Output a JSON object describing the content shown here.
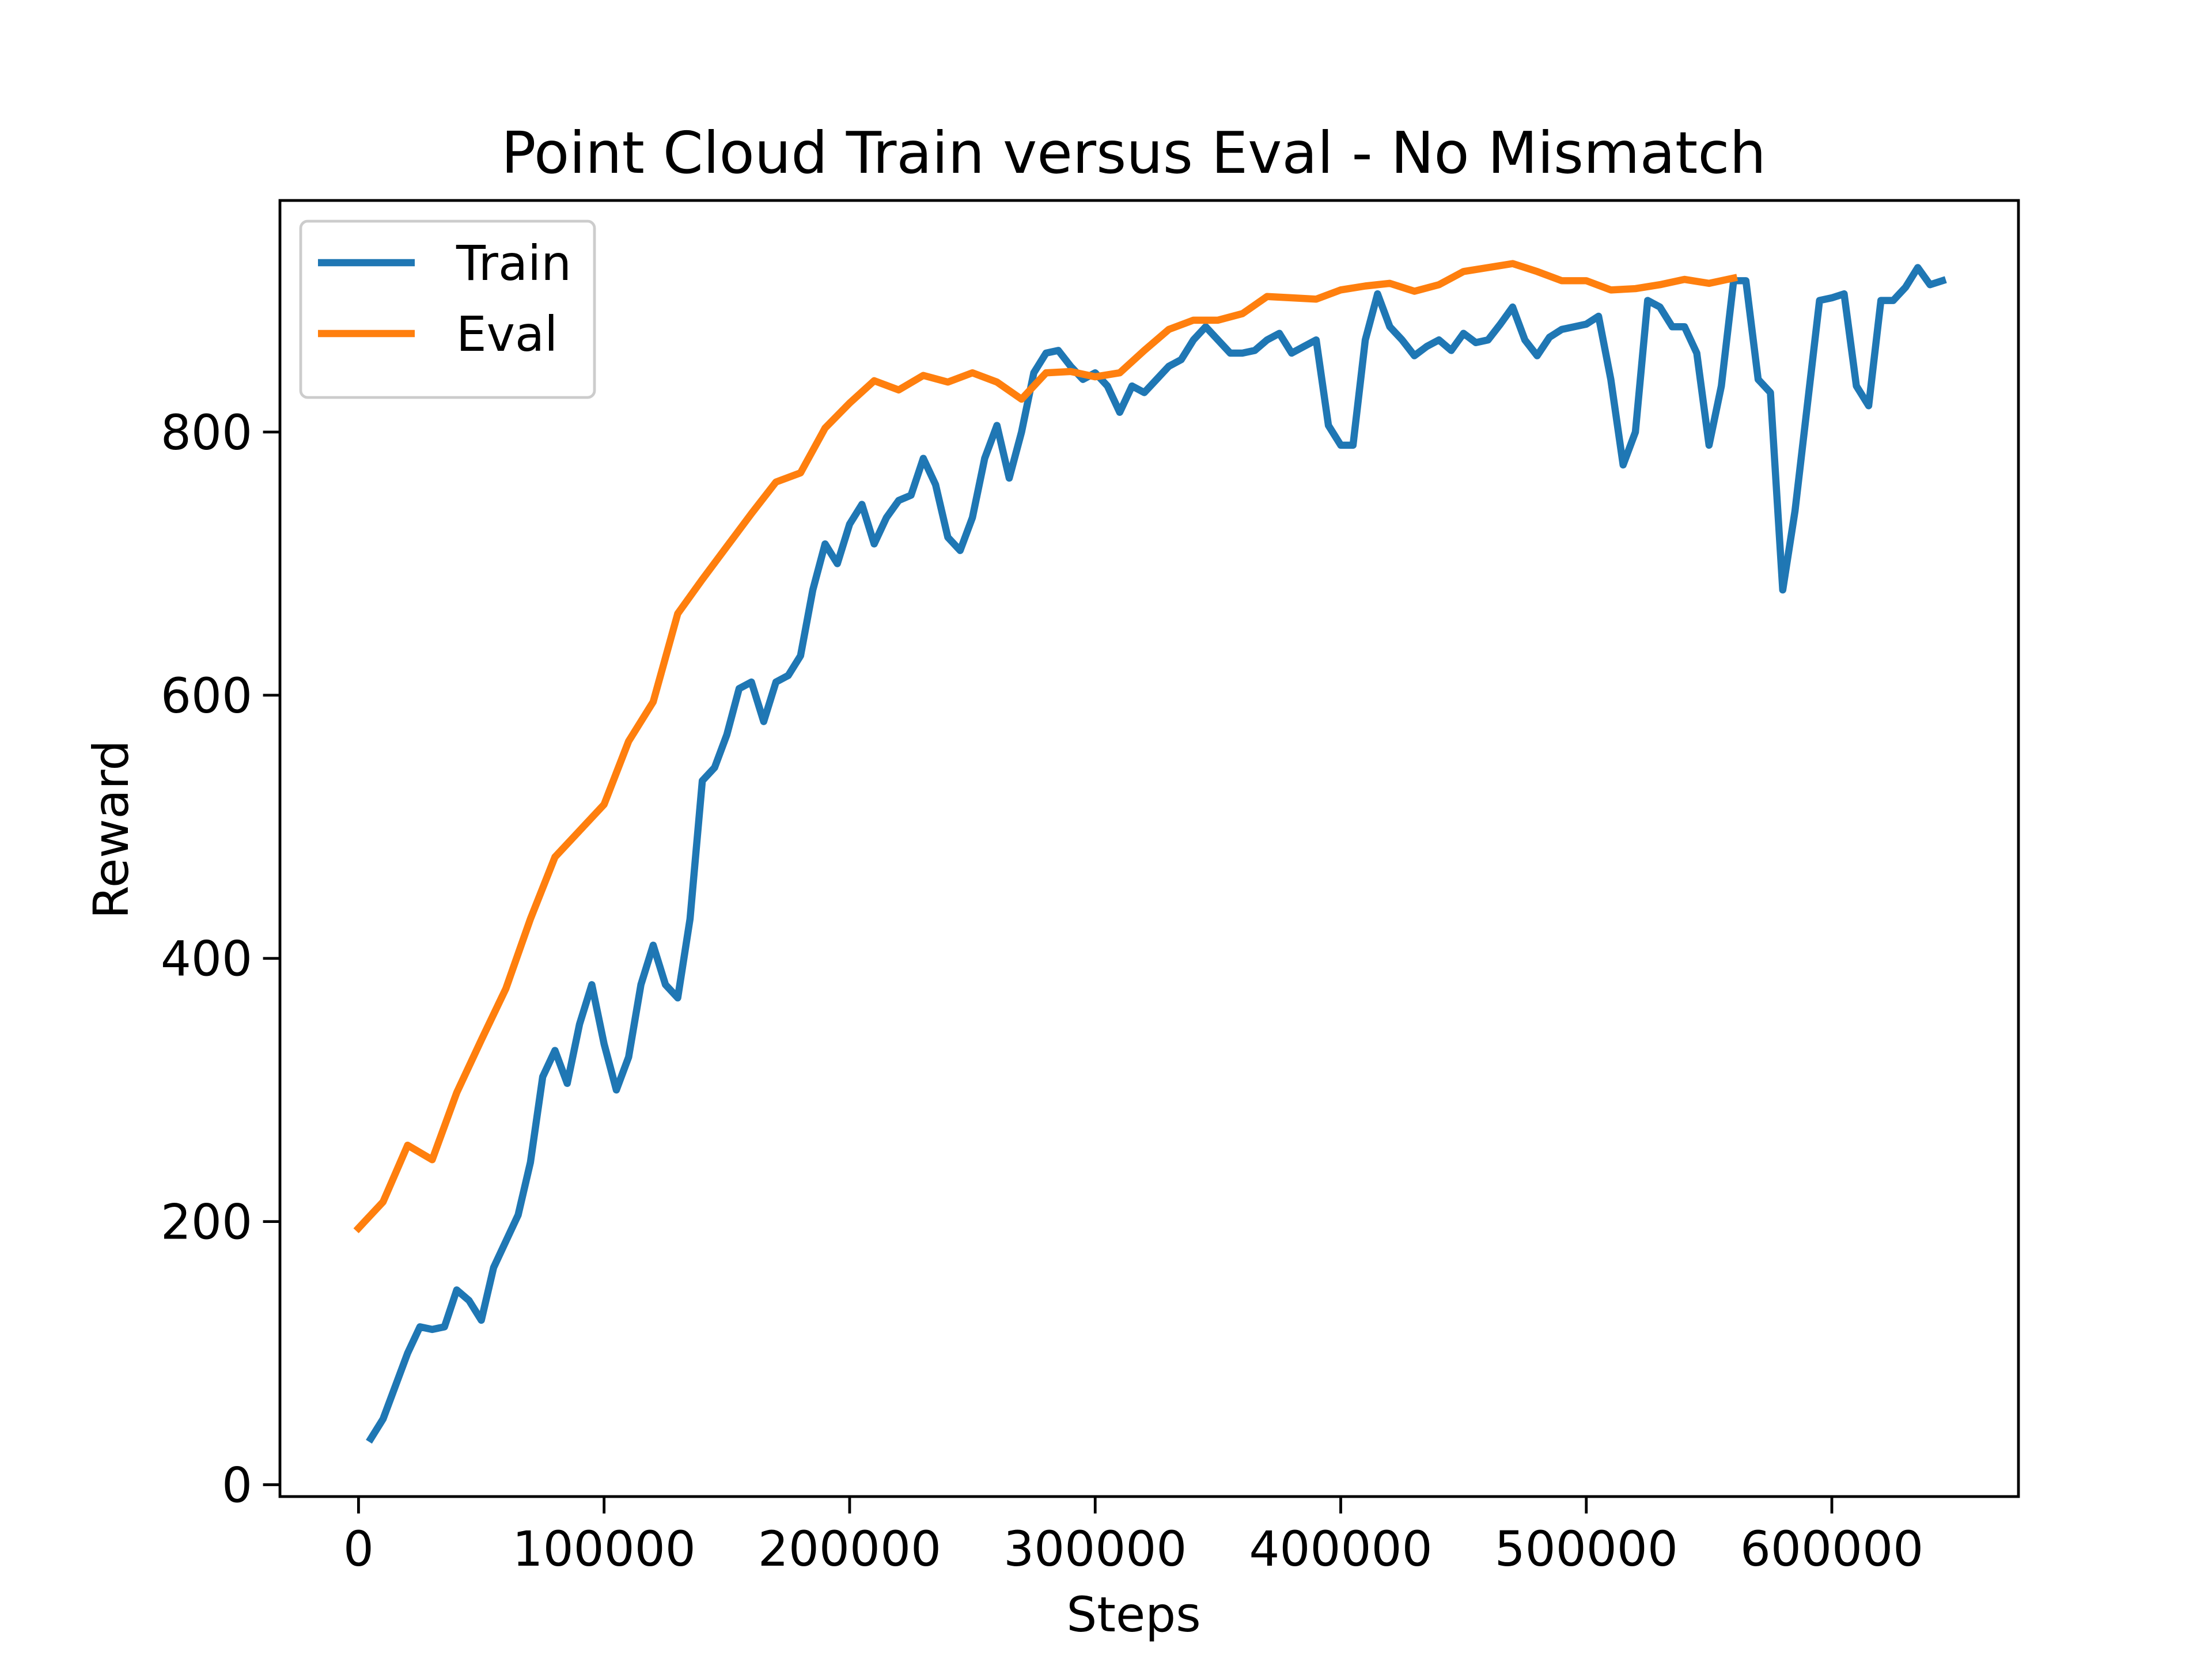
{
  "chart_data": {
    "type": "line",
    "title": "Point Cloud Train versus Eval - No Mismatch",
    "x_label": "Steps",
    "y_label": "Reward",
    "xlim": [
      -32000,
      676000
    ],
    "ylim": [
      -9,
      976
    ],
    "xticks": [
      0,
      100000,
      200000,
      300000,
      400000,
      500000,
      600000
    ],
    "yticks": [
      0,
      200,
      400,
      600,
      800
    ],
    "grid": false,
    "legend": "upper left",
    "series": [
      {
        "name": "Train",
        "color": "#1f77b4",
        "x": [
          5000,
          10000,
          15000,
          20000,
          25000,
          30000,
          35000,
          40000,
          45000,
          50000,
          55000,
          60000,
          65000,
          70000,
          75000,
          80000,
          85000,
          90000,
          95000,
          100000,
          105000,
          110000,
          115000,
          120000,
          125000,
          130000,
          135000,
          140000,
          145000,
          150000,
          155000,
          160000,
          165000,
          170000,
          175000,
          180000,
          185000,
          190000,
          195000,
          200000,
          205000,
          210000,
          215000,
          220000,
          225000,
          230000,
          235000,
          240000,
          245000,
          250000,
          255000,
          260000,
          265000,
          270000,
          275000,
          280000,
          285000,
          290000,
          295000,
          300000,
          305000,
          310000,
          315000,
          320000,
          325000,
          330000,
          335000,
          340000,
          345000,
          350000,
          355000,
          360000,
          365000,
          370000,
          375000,
          380000,
          385000,
          390000,
          395000,
          400000,
          405000,
          410000,
          415000,
          420000,
          425000,
          430000,
          435000,
          440000,
          445000,
          450000,
          455000,
          460000,
          465000,
          470000,
          475000,
          480000,
          485000,
          490000,
          495000,
          500000,
          505000,
          510000,
          515000,
          520000,
          525000,
          530000,
          535000,
          540000,
          545000,
          550000,
          555000,
          560000,
          565000,
          570000,
          575000,
          580000,
          585000,
          590000,
          595000,
          600000,
          605000,
          610000,
          615000,
          620000,
          625000,
          630000,
          635000,
          640000,
          645000
        ],
        "values": [
          35,
          50,
          75,
          100,
          120,
          118,
          120,
          148,
          140,
          125,
          165,
          185,
          205,
          245,
          310,
          330,
          305,
          350,
          380,
          335,
          300,
          325,
          380,
          410,
          380,
          370,
          430,
          535,
          545,
          570,
          605,
          610,
          580,
          610,
          615,
          630,
          680,
          715,
          700,
          730,
          745,
          715,
          735,
          748,
          752,
          780,
          760,
          720,
          710,
          735,
          780,
          805,
          765,
          800,
          845,
          860,
          862,
          850,
          840,
          845,
          835,
          815,
          835,
          830,
          840,
          850,
          855,
          870,
          880,
          870,
          860,
          860,
          862,
          870,
          875,
          860,
          865,
          870,
          805,
          790,
          790,
          870,
          905,
          880,
          870,
          858,
          865,
          870,
          862,
          875,
          868,
          870,
          882,
          895,
          870,
          858,
          872,
          878,
          880,
          882,
          888,
          840,
          775,
          800,
          900,
          895,
          880,
          880,
          860,
          790,
          835,
          915,
          915,
          840,
          830,
          680,
          740,
          820,
          900,
          902,
          905,
          835,
          820,
          900,
          900,
          910,
          925,
          912,
          915
        ]
      },
      {
        "name": "Eval",
        "color": "#ff7f0e",
        "x": [
          0,
          10000,
          20000,
          30000,
          40000,
          50000,
          60000,
          70000,
          80000,
          90000,
          100000,
          110000,
          120000,
          130000,
          140000,
          150000,
          160000,
          170000,
          180000,
          190000,
          200000,
          210000,
          220000,
          230000,
          240000,
          250000,
          260000,
          270000,
          280000,
          290000,
          300000,
          310000,
          320000,
          330000,
          340000,
          350000,
          360000,
          370000,
          380000,
          390000,
          400000,
          410000,
          420000,
          430000,
          440000,
          450000,
          460000,
          470000,
          480000,
          490000,
          500000,
          510000,
          520000,
          530000,
          540000,
          550000,
          560000
        ],
        "values": [
          195,
          215,
          258,
          247,
          298,
          338,
          377,
          430,
          477,
          497,
          517,
          565,
          595,
          662,
          688,
          713,
          738,
          762,
          769,
          803,
          822,
          839,
          832,
          843,
          838,
          845,
          838,
          825,
          845,
          846,
          842,
          845,
          862,
          878,
          885,
          885,
          890,
          903,
          902,
          901,
          908,
          911,
          913,
          907,
          912,
          922,
          925,
          928,
          922,
          915,
          915,
          908,
          909,
          912,
          916,
          913,
          917
        ]
      }
    ]
  }
}
